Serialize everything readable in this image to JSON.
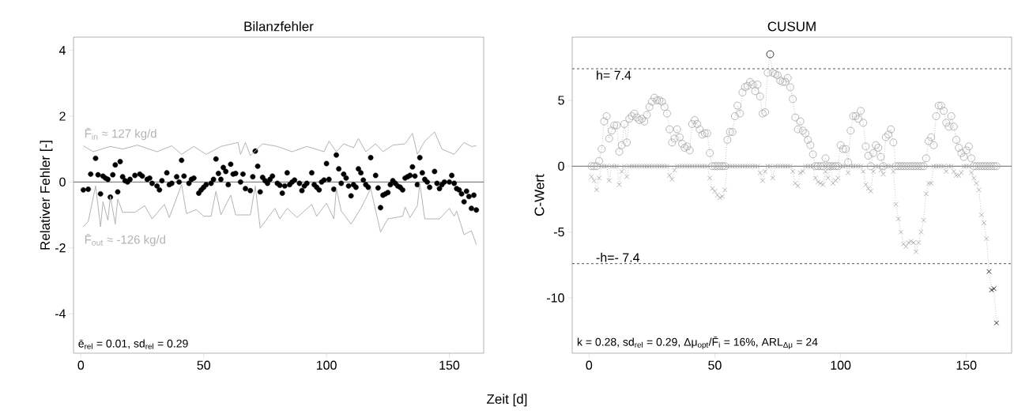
{
  "chart_data": [
    {
      "type": "scatter",
      "title": "Bilanzfehler",
      "xlabel": "Zeit [d]",
      "ylabel": "Relativer Fehler [-]",
      "xlim": [
        -3,
        164
      ],
      "ylim": [
        -5.2,
        4.4
      ],
      "xticks": [
        0,
        50,
        100,
        150
      ],
      "yticks": [
        -4,
        -2,
        0,
        2,
        4
      ],
      "series": [
        {
          "type": "scatter",
          "marker": "circle",
          "color": "#000000",
          "x": [
            1,
            3,
            4,
            6,
            7,
            8,
            9,
            10,
            11,
            12,
            13,
            14,
            15,
            16,
            17,
            18,
            19,
            20,
            22,
            24,
            25,
            27,
            28,
            29,
            31,
            32,
            33,
            35,
            36,
            37,
            39,
            40,
            41,
            42,
            44,
            45,
            46,
            48,
            49,
            50,
            51,
            53,
            54,
            55,
            56,
            57,
            58,
            59,
            60,
            61,
            62,
            63,
            65,
            66,
            67,
            69,
            70,
            71,
            72,
            73,
            74,
            75,
            76,
            77,
            78,
            80,
            81,
            82,
            83,
            84,
            85,
            86,
            87,
            89,
            90,
            91,
            92,
            94,
            95,
            96,
            97,
            98,
            99,
            100,
            101,
            103,
            104,
            105,
            106,
            107,
            108,
            109,
            110,
            111,
            112,
            113,
            114,
            115,
            116,
            117,
            118,
            120,
            121,
            122,
            123,
            124,
            125,
            126,
            127,
            128,
            129,
            130,
            131,
            132,
            133,
            134,
            135,
            136,
            137,
            138,
            139,
            140,
            141,
            142,
            144,
            145,
            146,
            147,
            148,
            150,
            151,
            152,
            153,
            154,
            155,
            156,
            157,
            158,
            159,
            160,
            161
          ],
          "values": [
            -0.24,
            -0.22,
            0.24,
            0.72,
            0.22,
            -0.36,
            0.18,
            0.12,
            0.08,
            -0.46,
            0.22,
            0.52,
            -0.3,
            0.62,
            0.16,
            0.04,
            0,
            0.08,
            0.2,
            0.24,
            0.18,
            0.08,
            0.12,
            -0.04,
            -0.12,
            -0.24,
            0.04,
            0.28,
            -0.08,
            -0.04,
            0.16,
            0,
            0.66,
            0.18,
            -0.04,
            0.08,
            0.12,
            -0.34,
            -0.24,
            -0.16,
            -0.08,
            -0.04,
            0.08,
            0.7,
            0.26,
            0.08,
            0.44,
            0.32,
            -0.08,
            0.54,
            0.24,
            0.26,
            0,
            0.24,
            -0.2,
            -0.26,
            0.16,
            0.94,
            0.48,
            -0.3,
            0.14,
            0.04,
            -0.04,
            0.08,
            0.18,
            -0.04,
            -0.1,
            -0.34,
            -0.12,
            0.28,
            -0.08,
            0,
            0.06,
            -0.04,
            -0.26,
            -0.12,
            -0.04,
            0.28,
            -0.08,
            -0.16,
            -0.24,
            0,
            0.06,
            0.56,
            0.08,
            -0.22,
            0.82,
            0.4,
            -0.04,
            0.24,
            0.12,
            -0.12,
            -0.42,
            -0.08,
            -0.16,
            0.4,
            0.28,
            0.06,
            -0.08,
            -0.16,
            0.74,
            0.2,
            -0.18,
            -0.78,
            -0.4,
            -0.36,
            -0.32,
            -0.08,
            0.04,
            -0.04,
            -0.12,
            -0.16,
            -0.24,
            0.12,
            0.16,
            0.2,
            0.46,
            0.18,
            -0.08,
            0.74,
            0.28,
            0.08,
            0,
            -0.16,
            0.32,
            -0.04,
            -0.2,
            -0.08,
            0,
            0,
            0.2,
            -0.04,
            -0.2,
            -0.24,
            -0.36,
            -0.6,
            -0.28,
            -0.44,
            -0.8,
            -0.4,
            -0.85
          ]
        },
        {
          "type": "line",
          "name": "F̄$_{in}$ ≈ 127 kg/d",
          "color": "#b3b3b3",
          "x": [
            1,
            5,
            12,
            17,
            23,
            31,
            37,
            41,
            46,
            51,
            57,
            64,
            65,
            67,
            69,
            74,
            80,
            86,
            92,
            99,
            101,
            104,
            107,
            111,
            113,
            116,
            120,
            123,
            127,
            132,
            135,
            137,
            140,
            144,
            147,
            152,
            156,
            159,
            161
          ],
          "values": [
            1.1,
            0.92,
            1.08,
            1.0,
            1.12,
            0.92,
            1.1,
            0.84,
            1.08,
            0.84,
            1.08,
            1.2,
            0.84,
            1.2,
            0.8,
            1.16,
            1.08,
            0.92,
            1.08,
            0.92,
            1.24,
            0.92,
            1.16,
            1.04,
            1.32,
            0.92,
            1.16,
            0.92,
            1.12,
            1.16,
            1.48,
            0.84,
            1.24,
            1.52,
            1.0,
            0.84,
            1.2,
            1.08,
            1.1
          ]
        },
        {
          "type": "line",
          "name": "F̄$_{out}$ ≈ -126 kg/d",
          "color": "#b3b3b3",
          "x": [
            1,
            3,
            6,
            8,
            9,
            11,
            12,
            14,
            15,
            17,
            22,
            26,
            29,
            34,
            36,
            41,
            43,
            47,
            50,
            53,
            55,
            57,
            61,
            63,
            69,
            71,
            73,
            79,
            81,
            84,
            88,
            94,
            96,
            100,
            103,
            104,
            106,
            110,
            114,
            118,
            122,
            125,
            131,
            132,
            134,
            137,
            138,
            140,
            146,
            150,
            152,
            153,
            156,
            159,
            161
          ],
          "values": [
            -1.36,
            -1.2,
            -0.12,
            -1.36,
            -0.6,
            -1.16,
            -0.44,
            -1.28,
            -0.52,
            -0.92,
            -0.92,
            -0.72,
            -1.12,
            -0.68,
            -1.08,
            -0.08,
            -0.96,
            -0.84,
            -1.04,
            -1.04,
            -0.28,
            -1.0,
            -0.4,
            -1.0,
            -1.0,
            -0.12,
            -1.4,
            -0.8,
            -1.12,
            -0.8,
            -1.08,
            -0.68,
            -1.04,
            -0.64,
            -1.12,
            -0.2,
            -0.88,
            -1.28,
            -0.8,
            -0.2,
            -1.52,
            -1.12,
            -1.04,
            -0.76,
            -1.08,
            -0.72,
            -0.04,
            -1.12,
            -1.12,
            -0.8,
            -1.04,
            -0.88,
            -1.6,
            -1.48,
            -1.9
          ]
        }
      ],
      "ref_lines": [
        {
          "axis": "y",
          "value": 0,
          "color": "#555555"
        }
      ],
      "annotations": [
        "ē$_{rel}$ = 0.01,  sd$_{rel}$ = 0.29"
      ]
    },
    {
      "type": "line",
      "title": "CUSUM",
      "ylabel": "C-Wert",
      "xlim": [
        -6.7,
        168
      ],
      "ylim": [
        -14.2,
        9.8
      ],
      "xticks": [
        0,
        50,
        100,
        150
      ],
      "yticks": [
        -10,
        -5,
        0,
        5
      ],
      "line_style": "dotted",
      "x": [
        1,
        2,
        3,
        4,
        5,
        6,
        7,
        8,
        9,
        10,
        11,
        12,
        13,
        14,
        15,
        16,
        17,
        18,
        19,
        20,
        21,
        22,
        23,
        24,
        25,
        26,
        27,
        28,
        29,
        30,
        31,
        32,
        33,
        34,
        35,
        36,
        37,
        38,
        39,
        40,
        41,
        42,
        43,
        44,
        45,
        46,
        47,
        48,
        49,
        50,
        51,
        52,
        53,
        54,
        55,
        56,
        57,
        58,
        59,
        60,
        61,
        62,
        63,
        64,
        65,
        66,
        67,
        68,
        69,
        70,
        71,
        72,
        73,
        74,
        75,
        76,
        77,
        78,
        79,
        80,
        81,
        82,
        83,
        84,
        85,
        86,
        87,
        88,
        89,
        90,
        91,
        92,
        93,
        94,
        95,
        96,
        97,
        98,
        99,
        100,
        101,
        102,
        103,
        104,
        105,
        106,
        107,
        108,
        109,
        110,
        111,
        112,
        113,
        114,
        115,
        116,
        117,
        118,
        119,
        120,
        121,
        122,
        123,
        124,
        125,
        126,
        127,
        128,
        129,
        130,
        131,
        132,
        133,
        134,
        135,
        136,
        137,
        138,
        139,
        140,
        141,
        142,
        143,
        144,
        145,
        146,
        147,
        148,
        149,
        150,
        151,
        152,
        153,
        154,
        155,
        156,
        157,
        158,
        159,
        160,
        161,
        162
      ],
      "series": [
        {
          "marker": "circle",
          "color": "#a6a6a6",
          "values": [
            0,
            0,
            0,
            0.4,
            1.3,
            3.4,
            3.8,
            2.1,
            2.7,
            3.1,
            3.1,
            1.1,
            1.6,
            3.2,
            1.8,
            3.6,
            3.8,
            4.0,
            3.7,
            3.5,
            3.6,
            3.4,
            3.9,
            4.5,
            4.9,
            5.2,
            5.0,
            5.0,
            4.9,
            4.5,
            4.0,
            2.8,
            1.8,
            2.1,
            2.8,
            2.2,
            1.7,
            1.4,
            1.5,
            1.2,
            3.2,
            3.5,
            3.2,
            2.8,
            2.4,
            2.5,
            2.5,
            1.0,
            0,
            0,
            0,
            0,
            0,
            0,
            2.0,
            2.6,
            2.6,
            3.8,
            4.6,
            4.0,
            5.6,
            6.0,
            6.1,
            6.4,
            6.2,
            5.7,
            6.2,
            5.3,
            4.0,
            4.1,
            7.1,
            8.5,
            7.1,
            7.0,
            6.9,
            6.5,
            6.4,
            6.4,
            6.7,
            6.0,
            5.1,
            3.7,
            2.8,
            3.4,
            2.7,
            2.5,
            2.0,
            1.6,
            0.9,
            0,
            0,
            0,
            0,
            0.6,
            0,
            0,
            0,
            0,
            0,
            1.6,
            1.3,
            1.3,
            0.3,
            2.7,
            3.8,
            3.8,
            3.6,
            4.2,
            3.3,
            1.5,
            0.8,
            0,
            1.0,
            1.6,
            1.4,
            0.7,
            0,
            2.2,
            2.4,
            2.8,
            1.8,
            0,
            0,
            0,
            0,
            0,
            0,
            0,
            0,
            0,
            0,
            0,
            0,
            0.6,
            1.9,
            2.2,
            1.6,
            3.8,
            4.6,
            4.6,
            4.2,
            3.3,
            3.0,
            3.8,
            3.0,
            2.0,
            1.4,
            1.0,
            0.7,
            1.2,
            1.5,
            0.6,
            0,
            0,
            0,
            0,
            0,
            0,
            0,
            0,
            0,
            0
          ],
          "colors": [
            "#a6a6a6",
            "#a6a6a6",
            "#a6a6a6",
            "#a6a6a6",
            "#a6a6a6",
            "#a6a6a6",
            "#a6a6a6",
            "#a6a6a6",
            "#a6a6a6",
            "#a6a6a6",
            "#a6a6a6",
            "#a6a6a6",
            "#a6a6a6",
            "#a6a6a6",
            "#a6a6a6",
            "#a6a6a6",
            "#a6a6a6",
            "#a6a6a6",
            "#a6a6a6",
            "#a6a6a6",
            "#a6a6a6",
            "#a6a6a6",
            "#a6a6a6",
            "#a6a6a6",
            "#a6a6a6",
            "#a6a6a6",
            "#a6a6a6",
            "#a6a6a6",
            "#a6a6a6",
            "#a6a6a6",
            "#a6a6a6",
            "#a6a6a6",
            "#a6a6a6",
            "#a6a6a6",
            "#a6a6a6",
            "#a6a6a6",
            "#a6a6a6",
            "#a6a6a6",
            "#a6a6a6",
            "#a6a6a6",
            "#a6a6a6",
            "#a6a6a6",
            "#a6a6a6",
            "#a6a6a6",
            "#a6a6a6",
            "#a6a6a6",
            "#a6a6a6",
            "#a6a6a6",
            "#a6a6a6",
            "#a6a6a6",
            "#a6a6a6",
            "#a6a6a6",
            "#a6a6a6",
            "#a6a6a6",
            "#a6a6a6",
            "#a6a6a6",
            "#a6a6a6",
            "#a6a6a6",
            "#a6a6a6",
            "#a6a6a6",
            "#a6a6a6",
            "#a6a6a6",
            "#a6a6a6",
            "#a6a6a6",
            "#a6a6a6",
            "#a6a6a6",
            "#a6a6a6",
            "#a6a6a6",
            "#a6a6a6",
            "#a6a6a6",
            "#a6a6a6",
            "#000000",
            "#a6a6a6",
            "#a6a6a6",
            "#a6a6a6",
            "#a6a6a6",
            "#a6a6a6",
            "#a6a6a6",
            "#a6a6a6",
            "#a6a6a6",
            "#a6a6a6",
            "#a6a6a6",
            "#a6a6a6",
            "#a6a6a6",
            "#a6a6a6",
            "#a6a6a6",
            "#a6a6a6",
            "#a6a6a6",
            "#a6a6a6",
            "#a6a6a6",
            "#a6a6a6",
            "#a6a6a6",
            "#a6a6a6",
            "#a6a6a6",
            "#a6a6a6",
            "#a6a6a6",
            "#a6a6a6",
            "#a6a6a6",
            "#a6a6a6",
            "#a6a6a6",
            "#a6a6a6",
            "#a6a6a6",
            "#a6a6a6",
            "#a6a6a6",
            "#a6a6a6",
            "#a6a6a6",
            "#a6a6a6",
            "#a6a6a6",
            "#a6a6a6",
            "#a6a6a6",
            "#a6a6a6",
            "#a6a6a6",
            "#a6a6a6",
            "#a6a6a6",
            "#a6a6a6",
            "#a6a6a6",
            "#a6a6a6",
            "#a6a6a6",
            "#a6a6a6",
            "#a6a6a6",
            "#a6a6a6",
            "#a6a6a6",
            "#a6a6a6",
            "#a6a6a6",
            "#a6a6a6",
            "#a6a6a6",
            "#a6a6a6",
            "#a6a6a6",
            "#a6a6a6",
            "#a6a6a6",
            "#a6a6a6",
            "#a6a6a6",
            "#a6a6a6",
            "#a6a6a6",
            "#a6a6a6",
            "#a6a6a6",
            "#a6a6a6",
            "#a6a6a6",
            "#a6a6a6",
            "#a6a6a6",
            "#a6a6a6",
            "#a6a6a6",
            "#a6a6a6",
            "#a6a6a6",
            "#a6a6a6",
            "#a6a6a6",
            "#a6a6a6",
            "#a6a6a6",
            "#a6a6a6",
            "#a6a6a6",
            "#a6a6a6",
            "#a6a6a6",
            "#a6a6a6",
            "#a6a6a6",
            "#a6a6a6",
            "#a6a6a6",
            "#a6a6a6",
            "#a6a6a6",
            "#a6a6a6",
            "#a6a6a6",
            "#a6a6a6",
            "#a6a6a6"
          ]
        },
        {
          "marker": "cross",
          "color": "#a6a6a6",
          "values": [
            -0.8,
            -1.1,
            -1.8,
            -0.9,
            0,
            0,
            0,
            -1.1,
            0,
            0,
            0,
            -1.4,
            -0.4,
            0,
            -0.8,
            0,
            0,
            0,
            0,
            0,
            0,
            0,
            0,
            0,
            0,
            0,
            0,
            0,
            0,
            0,
            0,
            -0.7,
            -1.0,
            -0.3,
            0,
            0,
            0,
            0,
            0,
            0,
            0,
            0,
            0,
            0,
            0,
            0,
            0,
            -0.9,
            -1.7,
            -1.9,
            -2.2,
            -2.4,
            -2.3,
            -1.8,
            0,
            0,
            0,
            0,
            0,
            0,
            0,
            0,
            0,
            0,
            0,
            0,
            0,
            -0.5,
            -1.1,
            -0.4,
            0,
            0,
            -0.9,
            0,
            0,
            0,
            0,
            0,
            0,
            0,
            -0.4,
            -1.3,
            -1.5,
            -0.5,
            -0.4,
            0,
            0,
            0,
            0,
            -0.9,
            -1.2,
            -1.3,
            -1.4,
            -0.4,
            -0.9,
            0,
            -1.3,
            -1.1,
            -0.9,
            0,
            0,
            0,
            -0.5,
            0,
            0,
            0,
            0,
            0,
            -0.4,
            -1.4,
            -1.7,
            -1.9,
            -0.4,
            0,
            0,
            -0.3,
            -0.6,
            0,
            0,
            0,
            -0.4,
            -2.9,
            -4.0,
            -5.0,
            -5.9,
            -6.1,
            -5.8,
            -5.7,
            -5.8,
            -6.5,
            -5.8,
            -5.0,
            -4.1,
            -2.1,
            -1.3,
            -1.3,
            0,
            0,
            0,
            0,
            0,
            -0.4,
            0,
            0,
            -0.4,
            -0.7,
            -0.7,
            -0.5,
            0,
            0,
            0,
            -0.5,
            -0.9,
            -1.3,
            -1.8,
            -3.7,
            -4.3,
            -5.5,
            -8.0,
            -9.4,
            -9.3,
            -11.9
          ],
          "colors": [
            "#a6a6a6",
            "#a6a6a6",
            "#a6a6a6",
            "#a6a6a6",
            "#a6a6a6",
            "#a6a6a6",
            "#a6a6a6",
            "#a6a6a6",
            "#a6a6a6",
            "#a6a6a6",
            "#a6a6a6",
            "#a6a6a6",
            "#a6a6a6",
            "#a6a6a6",
            "#a6a6a6",
            "#a6a6a6",
            "#a6a6a6",
            "#a6a6a6",
            "#a6a6a6",
            "#a6a6a6",
            "#a6a6a6",
            "#a6a6a6",
            "#a6a6a6",
            "#a6a6a6",
            "#a6a6a6",
            "#a6a6a6",
            "#a6a6a6",
            "#a6a6a6",
            "#a6a6a6",
            "#a6a6a6",
            "#a6a6a6",
            "#a6a6a6",
            "#a6a6a6",
            "#a6a6a6",
            "#a6a6a6",
            "#a6a6a6",
            "#a6a6a6",
            "#a6a6a6",
            "#a6a6a6",
            "#a6a6a6",
            "#a6a6a6",
            "#a6a6a6",
            "#a6a6a6",
            "#a6a6a6",
            "#a6a6a6",
            "#a6a6a6",
            "#a6a6a6",
            "#a6a6a6",
            "#a6a6a6",
            "#a6a6a6",
            "#a6a6a6",
            "#a6a6a6",
            "#a6a6a6",
            "#a6a6a6",
            "#a6a6a6",
            "#a6a6a6",
            "#a6a6a6",
            "#a6a6a6",
            "#a6a6a6",
            "#a6a6a6",
            "#a6a6a6",
            "#a6a6a6",
            "#a6a6a6",
            "#a6a6a6",
            "#a6a6a6",
            "#a6a6a6",
            "#a6a6a6",
            "#a6a6a6",
            "#a6a6a6",
            "#a6a6a6",
            "#a6a6a6",
            "#a6a6a6",
            "#a6a6a6",
            "#a6a6a6",
            "#a6a6a6",
            "#a6a6a6",
            "#a6a6a6",
            "#a6a6a6",
            "#a6a6a6",
            "#a6a6a6",
            "#a6a6a6",
            "#a6a6a6",
            "#a6a6a6",
            "#a6a6a6",
            "#a6a6a6",
            "#a6a6a6",
            "#a6a6a6",
            "#a6a6a6",
            "#a6a6a6",
            "#a6a6a6",
            "#a6a6a6",
            "#a6a6a6",
            "#a6a6a6",
            "#a6a6a6",
            "#a6a6a6",
            "#a6a6a6",
            "#a6a6a6",
            "#a6a6a6",
            "#a6a6a6",
            "#a6a6a6",
            "#a6a6a6",
            "#a6a6a6",
            "#a6a6a6",
            "#a6a6a6",
            "#a6a6a6",
            "#a6a6a6",
            "#a6a6a6",
            "#a6a6a6",
            "#a6a6a6",
            "#a6a6a6",
            "#a6a6a6",
            "#a6a6a6",
            "#a6a6a6",
            "#a6a6a6",
            "#a6a6a6",
            "#a6a6a6",
            "#a6a6a6",
            "#a6a6a6",
            "#a6a6a6",
            "#a6a6a6",
            "#a6a6a6",
            "#a6a6a6",
            "#a6a6a6",
            "#a6a6a6",
            "#a6a6a6",
            "#a6a6a6",
            "#a6a6a6",
            "#a6a6a6",
            "#a6a6a6",
            "#a6a6a6",
            "#a6a6a6",
            "#a6a6a6",
            "#a6a6a6",
            "#a6a6a6",
            "#a6a6a6",
            "#a6a6a6",
            "#a6a6a6",
            "#a6a6a6",
            "#a6a6a6",
            "#a6a6a6",
            "#a6a6a6",
            "#a6a6a6",
            "#a6a6a6",
            "#a6a6a6",
            "#a6a6a6",
            "#a6a6a6",
            "#a6a6a6",
            "#a6a6a6",
            "#a6a6a6",
            "#a6a6a6",
            "#a6a6a6",
            "#a6a6a6",
            "#a6a6a6",
            "#a6a6a6",
            "#a6a6a6",
            "#a6a6a6",
            "#a6a6a6",
            "#a6a6a6",
            "#000000",
            "#000000",
            "#000000",
            "#000000"
          ]
        }
      ],
      "ref_lines": [
        {
          "axis": "y",
          "value": 0,
          "color": "#555555"
        },
        {
          "axis": "y",
          "value": 7.4,
          "label": "h= 7.4",
          "color": "#444444",
          "line_style": "dashed"
        },
        {
          "axis": "y",
          "value": -7.4,
          "label": "-h=- 7.4",
          "color": "#444444",
          "line_style": "dashed"
        }
      ],
      "annotations": [
        "k = 0.28,  sd$_{rel}$ = 0.29,  Δμ$_{opt}$/F̄$_{i}$ = 16%, ARL$_{Δμ}$ = 24"
      ]
    }
  ]
}
